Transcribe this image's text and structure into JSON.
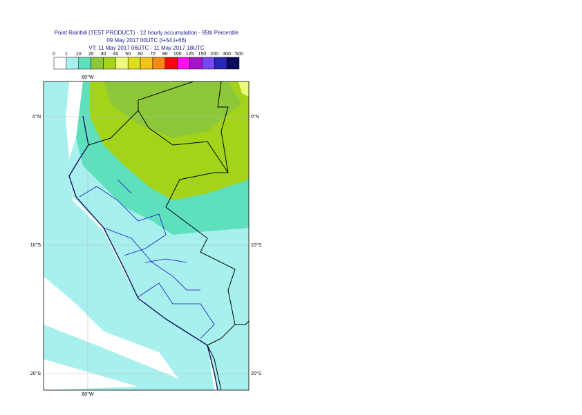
{
  "header": {
    "title": "Point Rainfall (TEST PRODUCT) - 12 hourly accumulation - 95th Percentile",
    "line2": "09 May 2017 00UTC (t+54,t+66)",
    "line3": "VT: 11 May 2017 06UTC - 11 May 2017 18UTC"
  },
  "legend": {
    "labels": [
      "0",
      "1",
      "10",
      "20",
      "30",
      "40",
      "50",
      "60",
      "70",
      "80",
      "100",
      "125",
      "150",
      "200",
      "300",
      "500"
    ],
    "colors": [
      "#ffffff",
      "#a8f0ee",
      "#5fe0bc",
      "#8cc83a",
      "#a4d41a",
      "#eefa7a",
      "#dede20",
      "#f4c218",
      "#f68a14",
      "#f40a0a",
      "#f812f0",
      "#a414c8",
      "#7848f0",
      "#2828b4",
      "#0a0a5a"
    ]
  },
  "map": {
    "lon_labels": {
      "top": "80°W",
      "bottom": "80°W"
    },
    "lat_labels": {
      "left": [
        "0°N",
        "10°S",
        "20°S"
      ],
      "right": [
        "0°N",
        "10°S",
        "20°S"
      ]
    }
  }
}
